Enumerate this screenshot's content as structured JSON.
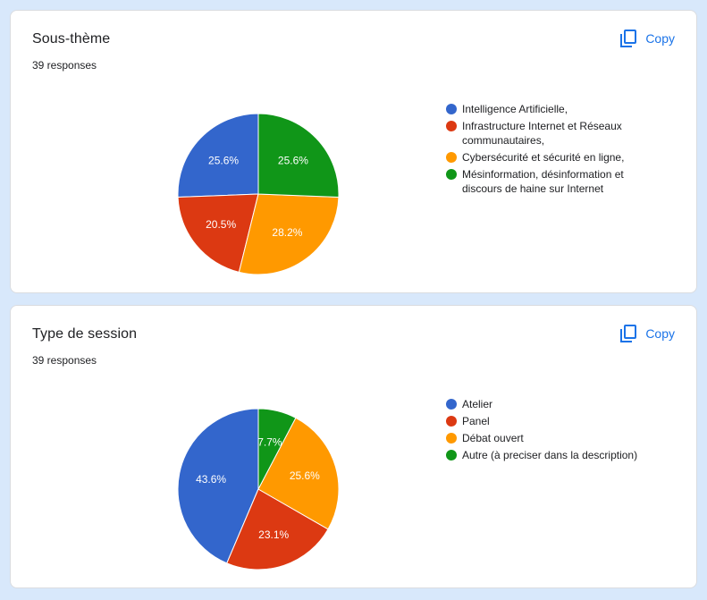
{
  "copy_label": "Copy",
  "copy_icon": "copy-icon",
  "colors": [
    "#3366cc",
    "#dc3912",
    "#ff9900",
    "#109618"
  ],
  "cards": [
    {
      "title": "Sous-thème",
      "responses": "39 responses",
      "legend": [
        "Intelligence Artificielle,",
        "Infrastructure Internet et Réseaux communautaires,",
        "Cybersécurité et sécurité en ligne,",
        "Mésinformation, désinformation et discours de haine sur Internet"
      ]
    },
    {
      "title": "Type de session",
      "responses": "39 responses",
      "legend": [
        "Atelier",
        "Panel",
        "Débat ouvert",
        "Autre (à preciser dans la description)"
      ]
    }
  ],
  "chart_data": [
    {
      "type": "pie",
      "title": "Sous-thème",
      "categories": [
        "Intelligence Artificielle,",
        "Infrastructure Internet et Réseaux communautaires,",
        "Cybersécurité et sécurité en ligne,",
        "Mésinformation, désinformation et discours de haine sur Internet"
      ],
      "values": [
        25.6,
        20.5,
        28.2,
        25.6
      ],
      "labels": [
        "25.6%",
        "20.5%",
        "28.2%",
        "25.6%"
      ],
      "legend_position": "right"
    },
    {
      "type": "pie",
      "title": "Type de session",
      "categories": [
        "Atelier",
        "Panel",
        "Débat ouvert",
        "Autre (à preciser dans la description)"
      ],
      "values": [
        43.6,
        23.1,
        25.6,
        7.7
      ],
      "labels": [
        "43.6%",
        "23.1%",
        "25.6%",
        "7.7%"
      ],
      "legend_position": "right"
    }
  ]
}
